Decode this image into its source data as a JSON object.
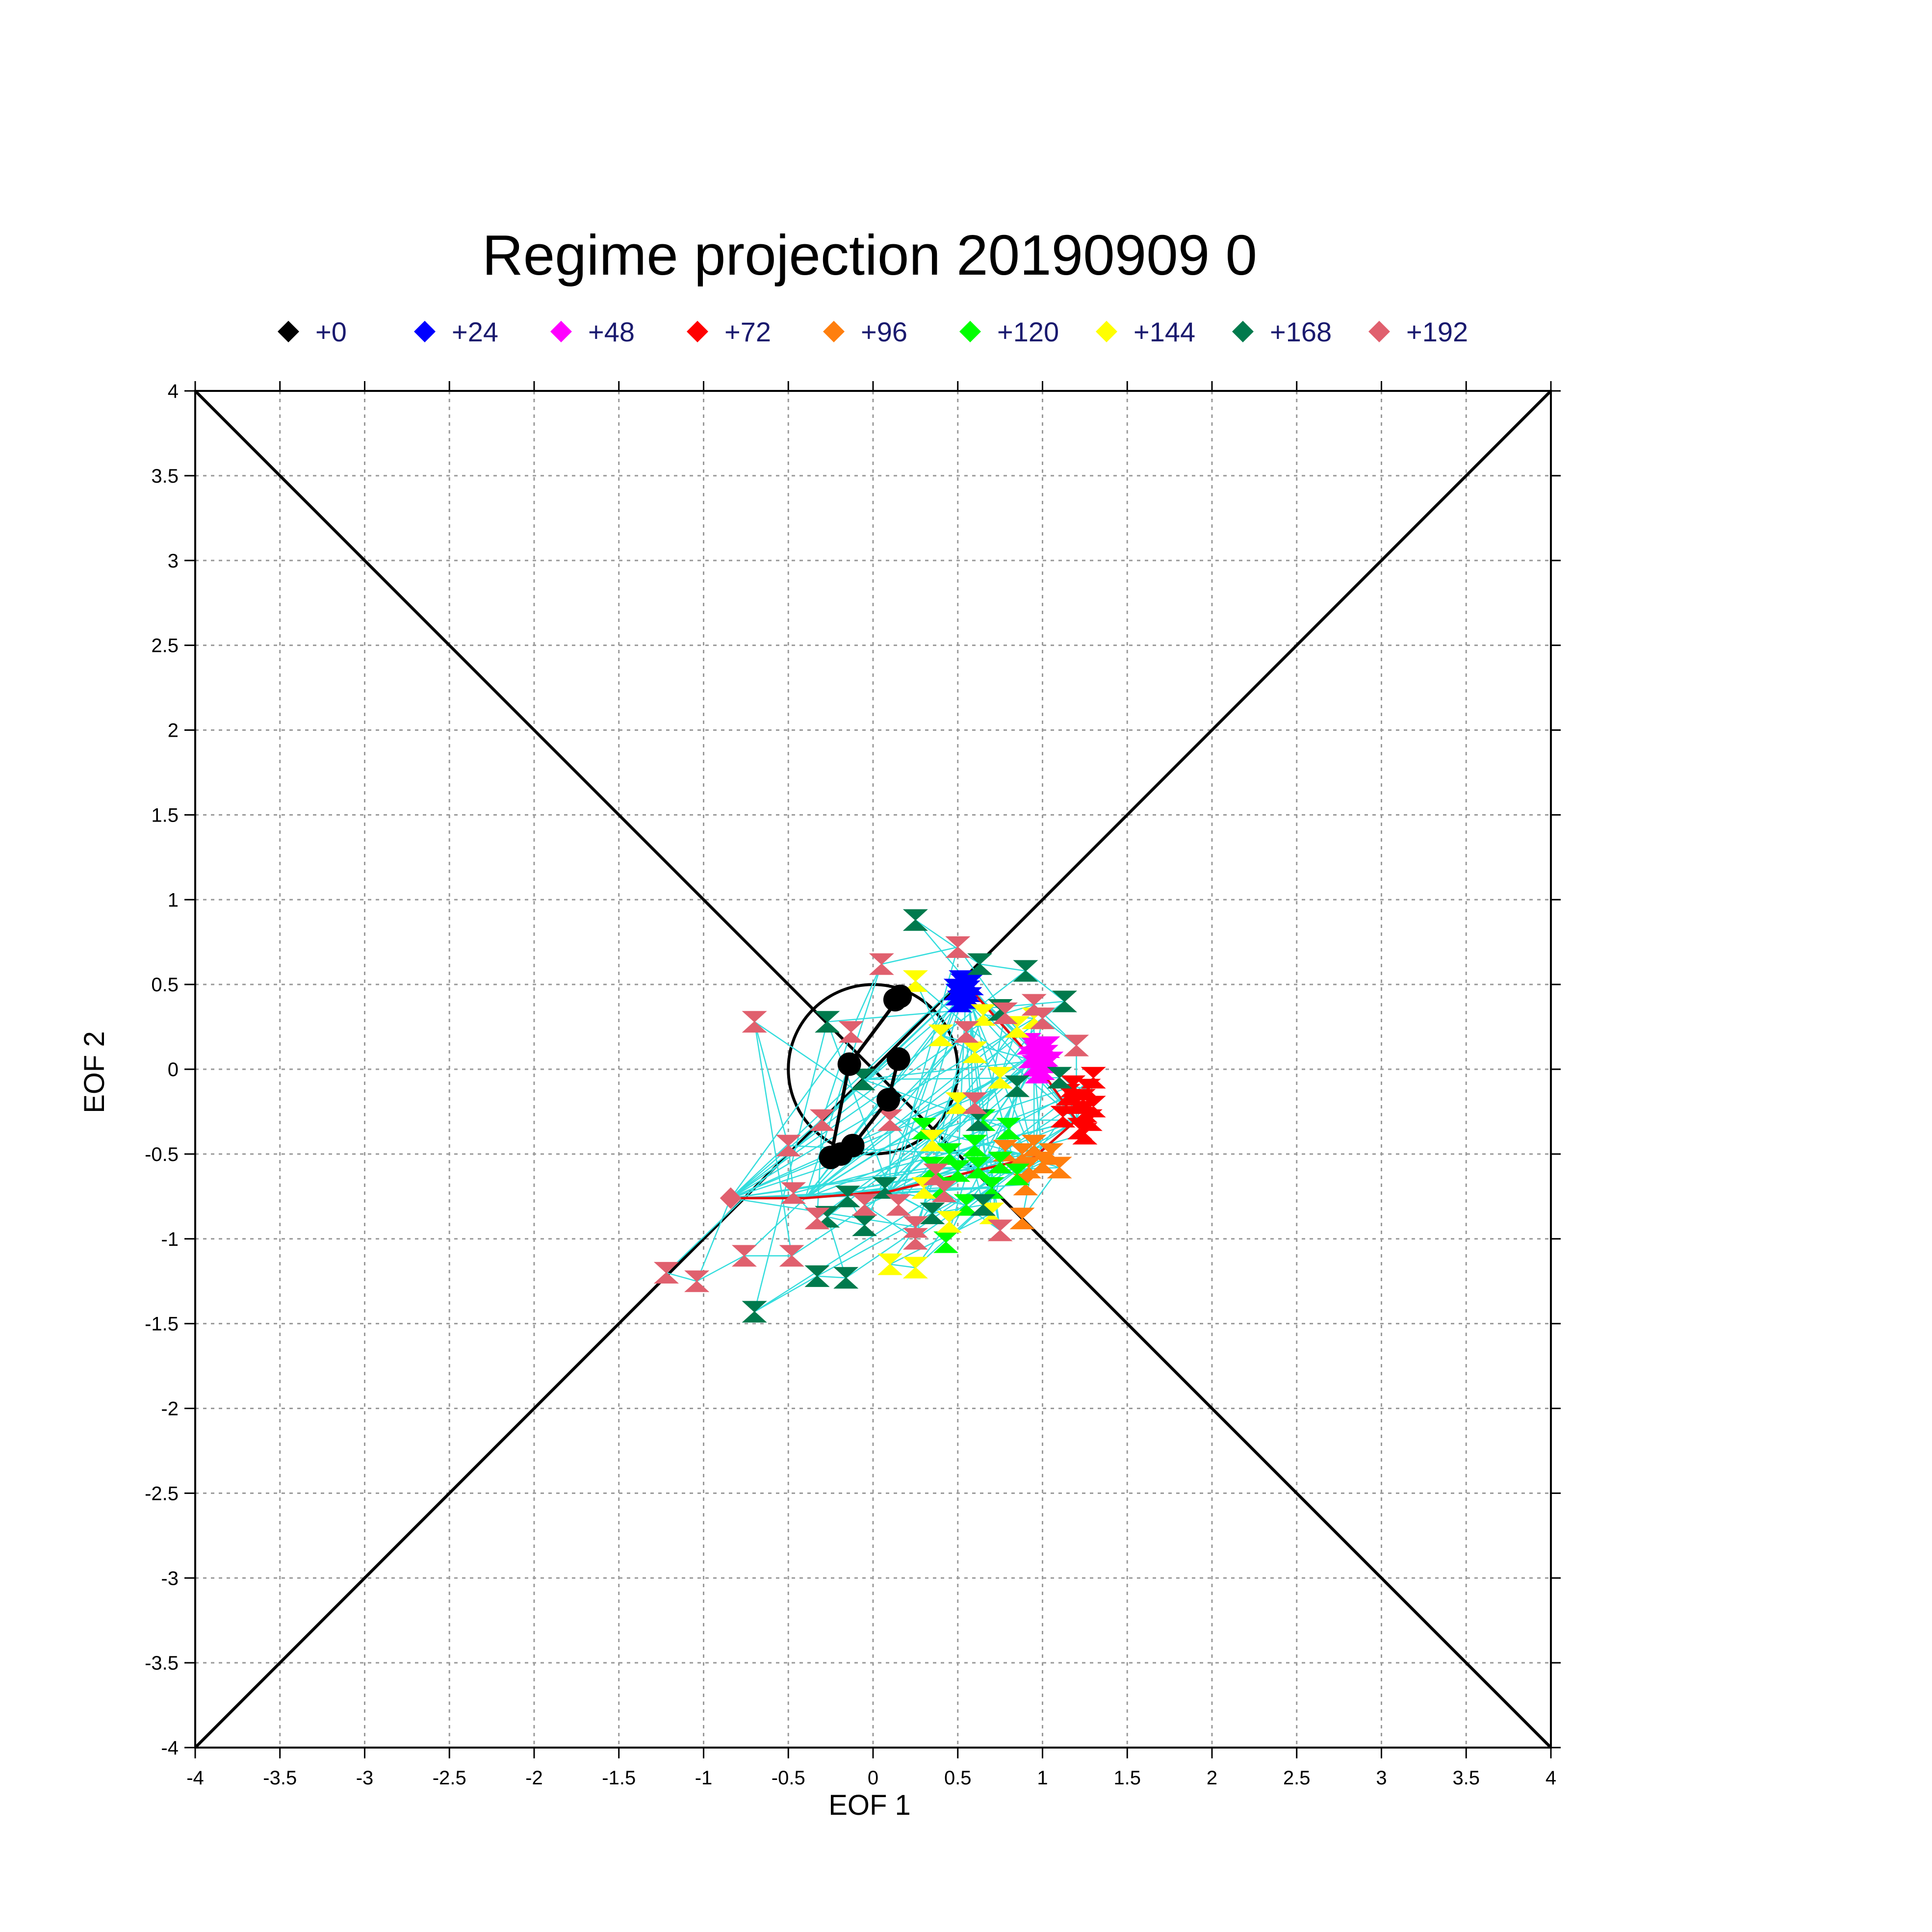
{
  "chart_data": {
    "type": "scatter",
    "title": "Regime projection  20190909 0",
    "xlabel": "EOF 1",
    "ylabel": "EOF 2",
    "xlim": [
      -4,
      4
    ],
    "ylim": [
      -4,
      4
    ],
    "ticks": [
      -4,
      -3.5,
      -3,
      -2.5,
      -2,
      -1.5,
      -1,
      -0.5,
      0,
      0.5,
      1,
      1.5,
      2,
      2.5,
      3,
      3.5,
      4
    ],
    "tick_labels": [
      "-4",
      "-3.5",
      "-3",
      "-2.5",
      "-2",
      "-1.5",
      "-1",
      "-0.5",
      "0",
      "0.5",
      "1",
      "1.5",
      "2",
      "2.5",
      "3",
      "3.5",
      "4"
    ],
    "grid": true,
    "legend_position": "top",
    "legend": [
      {
        "label": "+0",
        "color": "#000000"
      },
      {
        "label": "+24",
        "color": "#0000ff"
      },
      {
        "label": "+48",
        "color": "#ff00ff"
      },
      {
        "label": "+72",
        "color": "#ff0000"
      },
      {
        "label": "+96",
        "color": "#ff7f0e"
      },
      {
        "label": "+120",
        "color": "#00ff00"
      },
      {
        "label": "+144",
        "color": "#ffff00"
      },
      {
        "label": "+168",
        "color": "#007a4d"
      },
      {
        "label": "+192",
        "color": "#e0606e"
      }
    ],
    "reference_circle": {
      "center": [
        0,
        0
      ],
      "radius": 0.5
    },
    "diagonals": [
      [
        [
          -4,
          -4
        ],
        [
          4,
          4
        ]
      ],
      [
        [
          -4,
          4
        ],
        [
          4,
          -4
        ]
      ]
    ],
    "spread_line_color": "#33dddd",
    "analysis_track": {
      "color": "#000000",
      "points": [
        [
          0.13,
          0.41
        ],
        [
          0.16,
          0.43
        ],
        [
          -0.14,
          0.03
        ],
        [
          -0.25,
          -0.52
        ],
        [
          -0.19,
          -0.5
        ],
        [
          -0.12,
          -0.45
        ],
        [
          0.09,
          -0.18
        ],
        [
          0.15,
          0.06
        ]
      ]
    },
    "mean_track": {
      "color": "#e01010",
      "points": [
        [
          -0.84,
          -0.76
        ],
        [
          -0.4,
          -0.76
        ],
        [
          0.1,
          -0.72
        ],
        [
          0.6,
          -0.6
        ],
        [
          0.95,
          -0.52
        ],
        [
          1.2,
          -0.3
        ],
        [
          0.95,
          0.05
        ],
        [
          0.55,
          0.5
        ]
      ]
    },
    "series": [
      {
        "name": "+24",
        "color": "#0000ff",
        "points": [
          [
            0.52,
            0.52
          ],
          [
            0.55,
            0.48
          ],
          [
            0.5,
            0.44
          ],
          [
            0.57,
            0.42
          ],
          [
            0.53,
            0.5
          ],
          [
            0.49,
            0.47
          ],
          [
            0.54,
            0.44
          ],
          [
            0.58,
            0.5
          ],
          [
            0.51,
            0.4
          ],
          [
            0.56,
            0.46
          ]
        ]
      },
      {
        "name": "+48",
        "color": "#ff00ff",
        "points": [
          [
            0.93,
            0.07
          ],
          [
            0.98,
            0.12
          ],
          [
            0.95,
            0.02
          ],
          [
            1.02,
            0.08
          ],
          [
            0.97,
            -0.02
          ],
          [
            1.05,
            0.04
          ],
          [
            0.92,
            0.15
          ],
          [
            1.0,
            0.0
          ],
          [
            0.96,
            0.1
          ],
          [
            1.03,
            0.13
          ]
        ]
      },
      {
        "name": "+72",
        "color": "#ff0000",
        "points": [
          [
            1.15,
            -0.15
          ],
          [
            1.2,
            -0.2
          ],
          [
            1.25,
            -0.25
          ],
          [
            1.28,
            -0.3
          ],
          [
            1.22,
            -0.35
          ],
          [
            1.3,
            -0.22
          ],
          [
            1.18,
            -0.1
          ],
          [
            1.27,
            -0.12
          ],
          [
            1.25,
            -0.38
          ],
          [
            1.3,
            -0.05
          ],
          [
            1.12,
            -0.28
          ],
          [
            1.24,
            -0.18
          ]
        ]
      },
      {
        "name": "+96",
        "color": "#ff7f0e",
        "points": [
          [
            0.88,
            -0.5
          ],
          [
            0.92,
            -0.58
          ],
          [
            0.95,
            -0.45
          ],
          [
            1.0,
            -0.55
          ],
          [
            0.85,
            -0.62
          ],
          [
            1.05,
            -0.5
          ],
          [
            0.9,
            -0.68
          ],
          [
            0.78,
            -0.48
          ],
          [
            1.1,
            -0.58
          ],
          [
            0.88,
            -0.88
          ]
        ]
      },
      {
        "name": "+120",
        "color": "#00ff00",
        "points": [
          [
            0.3,
            -0.35
          ],
          [
            0.45,
            -0.5
          ],
          [
            0.6,
            -0.45
          ],
          [
            0.5,
            -0.6
          ],
          [
            0.4,
            -0.7
          ],
          [
            0.7,
            -0.7
          ],
          [
            0.55,
            -0.8
          ],
          [
            0.75,
            -0.55
          ],
          [
            0.8,
            -0.35
          ],
          [
            0.65,
            -0.3
          ],
          [
            0.43,
            -1.02
          ],
          [
            0.85,
            -0.62
          ],
          [
            0.35,
            -0.58
          ],
          [
            0.62,
            -0.58
          ]
        ]
      },
      {
        "name": "+144",
        "color": "#ffff00",
        "points": [
          [
            0.25,
            0.52
          ],
          [
            0.4,
            0.2
          ],
          [
            0.6,
            0.1
          ],
          [
            0.75,
            -0.05
          ],
          [
            0.85,
            0.25
          ],
          [
            0.5,
            -0.2
          ],
          [
            0.3,
            -0.7
          ],
          [
            0.45,
            -0.9
          ],
          [
            0.25,
            -1.17
          ],
          [
            0.1,
            -1.15
          ],
          [
            0.7,
            -0.85
          ],
          [
            0.95,
            0.3
          ],
          [
            0.65,
            0.32
          ],
          [
            0.35,
            -0.42
          ]
        ]
      },
      {
        "name": "+168",
        "color": "#007a4d",
        "points": [
          [
            0.25,
            0.88
          ],
          [
            0.63,
            0.62
          ],
          [
            0.9,
            0.58
          ],
          [
            1.13,
            0.4
          ],
          [
            -0.27,
            0.28
          ],
          [
            -0.7,
            -1.43
          ],
          [
            -0.33,
            -1.22
          ],
          [
            -0.16,
            -1.23
          ],
          [
            -0.27,
            -0.87
          ],
          [
            -0.05,
            -0.92
          ],
          [
            -0.15,
            -0.75
          ],
          [
            0.07,
            -0.7
          ],
          [
            0.35,
            -0.85
          ],
          [
            0.65,
            -0.8
          ],
          [
            0.85,
            -0.1
          ],
          [
            0.62,
            -0.3
          ],
          [
            -0.06,
            -0.06
          ],
          [
            1.1,
            -0.05
          ],
          [
            0.75,
            0.35
          ]
        ]
      },
      {
        "name": "+192",
        "color": "#e0606e",
        "points": [
          [
            -1.22,
            -1.2
          ],
          [
            -1.04,
            -1.25
          ],
          [
            -0.76,
            -1.1
          ],
          [
            -0.48,
            -1.1
          ],
          [
            -0.7,
            0.28
          ],
          [
            -0.5,
            -0.45
          ],
          [
            -0.47,
            -0.73
          ],
          [
            -0.33,
            -0.88
          ],
          [
            -0.3,
            -0.3
          ],
          [
            -0.13,
            0.22
          ],
          [
            0.05,
            0.62
          ],
          [
            0.5,
            0.72
          ],
          [
            0.78,
            0.33
          ],
          [
            0.95,
            0.38
          ],
          [
            1.2,
            0.14
          ],
          [
            1.0,
            0.3
          ],
          [
            0.15,
            -0.8
          ],
          [
            0.25,
            -0.93
          ],
          [
            0.37,
            -0.62
          ],
          [
            0.1,
            -0.3
          ],
          [
            0.55,
            0.22
          ],
          [
            0.25,
            -1.0
          ],
          [
            -0.05,
            -0.8
          ],
          [
            0.6,
            -0.2
          ],
          [
            0.75,
            -0.95
          ],
          [
            0.42,
            -0.72
          ]
        ]
      }
    ]
  }
}
